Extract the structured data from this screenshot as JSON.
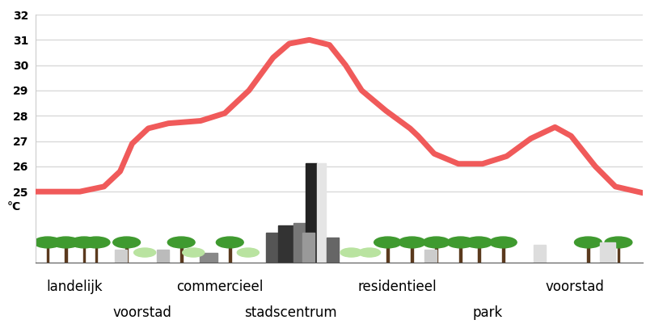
{
  "chart_data": {
    "type": "line",
    "x": [
      0,
      55,
      85,
      105,
      120,
      140,
      165,
      205,
      235,
      265,
      295,
      315,
      340,
      365,
      385,
      405,
      435,
      465,
      475,
      495,
      525,
      555,
      585,
      615,
      645,
      665,
      695,
      720,
      754
    ],
    "values": [
      25.0,
      25.0,
      25.2,
      25.8,
      26.9,
      27.5,
      27.7,
      27.8,
      28.1,
      29.0,
      30.3,
      30.85,
      31.0,
      30.8,
      30.0,
      29.0,
      28.2,
      27.5,
      27.2,
      26.5,
      26.1,
      26.1,
      26.4,
      27.1,
      27.55,
      27.2,
      26.0,
      25.2,
      24.95
    ],
    "color": "#f05a5a",
    "xlim": [
      0,
      754
    ],
    "ylim": [
      22.2,
      32
    ],
    "yticks": [
      25,
      26,
      27,
      28,
      29,
      30,
      31,
      32
    ],
    "y_label": "°C",
    "grid": true,
    "tick_labels": "y",
    "annotations": [
      "landelijk",
      "voorstad",
      "commercieel",
      "stadscentrum",
      "residentieel",
      "park",
      "voorstad"
    ]
  }
}
